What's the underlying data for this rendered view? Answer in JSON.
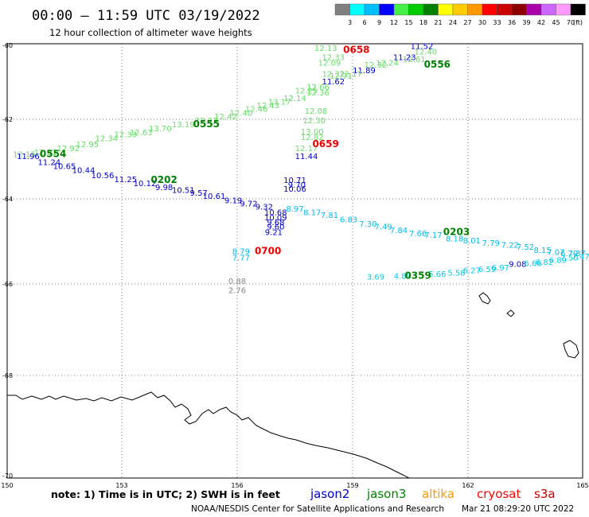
{
  "header": {
    "title": "00:00 — 11:59 UTC 03/19/2022",
    "subtitle": "12 hour collection of altimeter wave heights"
  },
  "legend": {
    "unit": "(ft)",
    "ticks": [
      "3",
      "6",
      "9",
      "12",
      "15",
      "18",
      "21",
      "24",
      "27",
      "30",
      "33",
      "36",
      "39",
      "42",
      "45",
      "70"
    ],
    "colors": [
      "#808080",
      "#00ffff",
      "#00bfff",
      "#0000ff",
      "#44ee44",
      "#00cc00",
      "#008000",
      "#ffff00",
      "#ffcc00",
      "#ff9900",
      "#ff0000",
      "#cc0000",
      "#8b0000",
      "#aa00aa",
      "#cc66ff",
      "#ff99ff",
      "#000000"
    ]
  },
  "map": {
    "lat_labels": [
      "-60",
      "-62",
      "-64",
      "-66",
      "-68",
      "-70"
    ],
    "lon_labels": [
      "150",
      "153",
      "156",
      "159",
      "162",
      "165"
    ]
  },
  "footer": {
    "note": "note:  1) Time is in UTC;  2) SWH is in feet",
    "satellites": [
      {
        "name": "jason2",
        "color": "#0000cc"
      },
      {
        "name": "jason3",
        "color": "#008000"
      },
      {
        "name": "altika",
        "color": "#ff9900"
      },
      {
        "name": "cryosat",
        "color": "#ff0000"
      },
      {
        "name": "s3a",
        "color": "#cc0000"
      }
    ],
    "credit": "NOAA/NESDIS Center for Satellite Applications and Research",
    "timestamp": "Mar 21 08:29:20 UTC 2022"
  },
  "time_labels": [
    {
      "text": "0658",
      "lon": 159.1,
      "lat": -60.2,
      "color": "#ee0000"
    },
    {
      "text": "0556",
      "lon": 161.2,
      "lat": -60.6,
      "color": "#008000"
    },
    {
      "text": "0555",
      "lon": 155.2,
      "lat": -62.2,
      "color": "#008000"
    },
    {
      "text": "0659",
      "lon": 158.3,
      "lat": -62.7,
      "color": "#ee0000"
    },
    {
      "text": "0554",
      "lon": 151.2,
      "lat": -62.95,
      "color": "#008000"
    },
    {
      "text": "0202",
      "lon": 154.1,
      "lat": -63.6,
      "color": "#008000"
    },
    {
      "text": "0203",
      "lon": 161.7,
      "lat": -64.85,
      "color": "#008000"
    },
    {
      "text": "0700",
      "lon": 156.8,
      "lat": -65.3,
      "color": "#ee0000"
    },
    {
      "text": "0359",
      "lon": 160.7,
      "lat": -65.88,
      "color": "#008000"
    }
  ],
  "swh_labels": [
    {
      "text": "12.13",
      "lon": 158.3,
      "lat": -60.15,
      "color": "#66dd66"
    },
    {
      "text": "11.52",
      "lon": 160.8,
      "lat": -60.1,
      "color": "#0000cc"
    },
    {
      "text": "12.40",
      "lon": 160.9,
      "lat": -60.25,
      "color": "#66dd66"
    },
    {
      "text": "12.61",
      "lon": 160.6,
      "lat": -60.45,
      "color": "#66dd66"
    },
    {
      "text": "11.23",
      "lon": 160.35,
      "lat": -60.4,
      "color": "#0000cc"
    },
    {
      "text": "12.24",
      "lon": 159.9,
      "lat": -60.55,
      "color": "#66dd66"
    },
    {
      "text": "12.32",
      "lon": 159.6,
      "lat": -60.6,
      "color": "#66dd66"
    },
    {
      "text": "11.89",
      "lon": 159.3,
      "lat": -60.75,
      "color": "#0000cc"
    },
    {
      "text": "12.33",
      "lon": 158.5,
      "lat": -60.4,
      "color": "#66dd66"
    },
    {
      "text": "12.09",
      "lon": 158.4,
      "lat": -60.55,
      "color": "#66dd66"
    },
    {
      "text": "12.71",
      "lon": 158.7,
      "lat": -60.9,
      "color": "#66dd66"
    },
    {
      "text": "12.17",
      "lon": 158.95,
      "lat": -60.85,
      "color": "#66dd66"
    },
    {
      "text": "12.32",
      "lon": 158.5,
      "lat": -60.85,
      "color": "#66dd66"
    },
    {
      "text": "11.62",
      "lon": 158.5,
      "lat": -61.05,
      "color": "#0000cc"
    },
    {
      "text": "12.66",
      "lon": 158.1,
      "lat": -61.2,
      "color": "#66dd66"
    },
    {
      "text": "12.25",
      "lon": 157.8,
      "lat": -61.3,
      "color": "#66dd66"
    },
    {
      "text": "12.36",
      "lon": 158.1,
      "lat": -61.35,
      "color": "#66dd66"
    },
    {
      "text": "12.14",
      "lon": 157.5,
      "lat": -61.5,
      "color": "#66dd66"
    },
    {
      "text": "13.17",
      "lon": 157.1,
      "lat": -61.6,
      "color": "#66dd66"
    },
    {
      "text": "12.43",
      "lon": 156.8,
      "lat": -61.7,
      "color": "#66dd66"
    },
    {
      "text": "12.46",
      "lon": 156.5,
      "lat": -61.8,
      "color": "#66dd66"
    },
    {
      "text": "12.40",
      "lon": 156.1,
      "lat": -61.9,
      "color": "#66dd66"
    },
    {
      "text": "12.42",
      "lon": 155.7,
      "lat": -62.0,
      "color": "#66dd66"
    },
    {
      "text": "12.08",
      "lon": 158.05,
      "lat": -61.85,
      "color": "#66dd66"
    },
    {
      "text": "12.30",
      "lon": 158.0,
      "lat": -62.1,
      "color": "#66dd66"
    },
    {
      "text": "13.00",
      "lon": 157.95,
      "lat": -62.38,
      "color": "#66dd66"
    },
    {
      "text": "12.82",
      "lon": 157.95,
      "lat": -62.52,
      "color": "#66dd66"
    },
    {
      "text": "12.17",
      "lon": 157.8,
      "lat": -62.8,
      "color": "#66dd66"
    },
    {
      "text": "11.44",
      "lon": 157.8,
      "lat": -63.0,
      "color": "#0000cc"
    },
    {
      "text": "12.13",
      "lon": 155.2,
      "lat": -62.1,
      "color": "#66dd66"
    },
    {
      "text": "13.19",
      "lon": 154.6,
      "lat": -62.2,
      "color": "#66dd66"
    },
    {
      "text": "13.70",
      "lon": 154.0,
      "lat": -62.3,
      "color": "#66dd66"
    },
    {
      "text": "12.63",
      "lon": 153.5,
      "lat": -62.4,
      "color": "#66dd66"
    },
    {
      "text": "12.33",
      "lon": 153.1,
      "lat": -62.45,
      "color": "#66dd66"
    },
    {
      "text": "12.34",
      "lon": 152.6,
      "lat": -62.55,
      "color": "#66dd66"
    },
    {
      "text": "12.95",
      "lon": 152.1,
      "lat": -62.7,
      "color": "#66dd66"
    },
    {
      "text": "12.92",
      "lon": 151.6,
      "lat": -62.8,
      "color": "#66dd66"
    },
    {
      "text": "12.91",
      "lon": 151.0,
      "lat": -62.9,
      "color": "#66dd66"
    },
    {
      "text": "12.15",
      "lon": 150.45,
      "lat": -62.95,
      "color": "#66dd66"
    },
    {
      "text": "11.96",
      "lon": 150.55,
      "lat": -63.0,
      "color": "#0000cc"
    },
    {
      "text": "11.24",
      "lon": 151.1,
      "lat": -63.15,
      "color": "#0000cc"
    },
    {
      "text": "10.65",
      "lon": 151.5,
      "lat": -63.25,
      "color": "#0000cc"
    },
    {
      "text": "10.44",
      "lon": 152.0,
      "lat": -63.35,
      "color": "#0000cc"
    },
    {
      "text": "10.56",
      "lon": 152.5,
      "lat": -63.48,
      "color": "#0000cc"
    },
    {
      "text": "11.25",
      "lon": 153.1,
      "lat": -63.58,
      "color": "#0000cc"
    },
    {
      "text": "10.12",
      "lon": 153.6,
      "lat": -63.68,
      "color": "#0000cc"
    },
    {
      "text": "9.98",
      "lon": 154.1,
      "lat": -63.78,
      "color": "#0000cc"
    },
    {
      "text": "10.51",
      "lon": 154.6,
      "lat": -63.85,
      "color": "#0000cc"
    },
    {
      "text": "9.57",
      "lon": 155.0,
      "lat": -63.92,
      "color": "#0000cc"
    },
    {
      "text": "10.61",
      "lon": 155.4,
      "lat": -64.0,
      "color": "#0000cc"
    },
    {
      "text": "9.19",
      "lon": 155.9,
      "lat": -64.1,
      "color": "#0000cc"
    },
    {
      "text": "9.72",
      "lon": 156.3,
      "lat": -64.18,
      "color": "#0000cc"
    },
    {
      "text": "9.32",
      "lon": 156.7,
      "lat": -64.25,
      "color": "#0000cc"
    },
    {
      "text": "10.71",
      "lon": 157.5,
      "lat": -63.6,
      "color": "#0000cc"
    },
    {
      "text": "9.70",
      "lon": 157.55,
      "lat": -63.72,
      "color": "#0000cc"
    },
    {
      "text": "10.06",
      "lon": 157.5,
      "lat": -63.82,
      "color": "#0000cc"
    },
    {
      "text": "10.68",
      "lon": 157.0,
      "lat": -64.38,
      "color": "#0000cc"
    },
    {
      "text": "10.09",
      "lon": 157.0,
      "lat": -64.5,
      "color": "#0000cc"
    },
    {
      "text": "9.68",
      "lon": 157.0,
      "lat": -64.62,
      "color": "#0000cc"
    },
    {
      "text": "9.60",
      "lon": 157.0,
      "lat": -64.72,
      "color": "#0000cc"
    },
    {
      "text": "9.21",
      "lon": 156.95,
      "lat": -64.85,
      "color": "#0000cc"
    },
    {
      "text": "8.97",
      "lon": 157.5,
      "lat": -64.3,
      "color": "#00bbee"
    },
    {
      "text": "8.17",
      "lon": 157.95,
      "lat": -64.38,
      "color": "#00bbee"
    },
    {
      "text": "7.81",
      "lon": 158.4,
      "lat": -64.45,
      "color": "#00bbee"
    },
    {
      "text": "6.83",
      "lon": 158.9,
      "lat": -64.55,
      "color": "#00bbee"
    },
    {
      "text": "7.30",
      "lon": 159.4,
      "lat": -64.65,
      "color": "#00bbee"
    },
    {
      "text": "7.49",
      "lon": 159.8,
      "lat": -64.72,
      "color": "#00bbee"
    },
    {
      "text": "7.84",
      "lon": 160.2,
      "lat": -64.8,
      "color": "#00bbee"
    },
    {
      "text": "7.66",
      "lon": 160.7,
      "lat": -64.88,
      "color": "#00bbee"
    },
    {
      "text": "7.17",
      "lon": 161.1,
      "lat": -64.92,
      "color": "#00bbee"
    },
    {
      "text": "8.18",
      "lon": 161.65,
      "lat": -65.0,
      "color": "#00bbee"
    },
    {
      "text": "8.01",
      "lon": 162.1,
      "lat": -65.05,
      "color": "#00bbee"
    },
    {
      "text": "7.79",
      "lon": 162.6,
      "lat": -65.1,
      "color": "#00bbee"
    },
    {
      "text": "7.22",
      "lon": 163.1,
      "lat": -65.15,
      "color": "#00bbee"
    },
    {
      "text": "7.52",
      "lon": 163.5,
      "lat": -65.2,
      "color": "#00bbee"
    },
    {
      "text": "8.15",
      "lon": 163.95,
      "lat": -65.27,
      "color": "#00bbee"
    },
    {
      "text": "7.07",
      "lon": 164.3,
      "lat": -65.32,
      "color": "#00bbee"
    },
    {
      "text": "6.79",
      "lon": 164.65,
      "lat": -65.35,
      "color": "#00bbee"
    },
    {
      "text": "7.37",
      "lon": 164.85,
      "lat": -65.35,
      "color": "#00bbee"
    },
    {
      "text": "8.79",
      "lon": 156.1,
      "lat": -65.3,
      "color": "#00bbee"
    },
    {
      "text": "7.77",
      "lon": 156.1,
      "lat": -65.45,
      "color": "#00bbee"
    },
    {
      "text": "0.88",
      "lon": 156.0,
      "lat": -66.0,
      "color": "#888888"
    },
    {
      "text": "2.76",
      "lon": 156.0,
      "lat": -66.2,
      "color": "#888888"
    },
    {
      "text": "3.69",
      "lon": 159.6,
      "lat": -65.9,
      "color": "#00ccee"
    },
    {
      "text": "4.89",
      "lon": 160.3,
      "lat": -65.88,
      "color": "#00ccee"
    },
    {
      "text": "5.66",
      "lon": 161.2,
      "lat": -65.83,
      "color": "#00ccee"
    },
    {
      "text": "5.58",
      "lon": 161.7,
      "lat": -65.8,
      "color": "#00ccee"
    },
    {
      "text": "6.27",
      "lon": 162.1,
      "lat": -65.75,
      "color": "#00ccee"
    },
    {
      "text": "6.59",
      "lon": 162.5,
      "lat": -65.72,
      "color": "#00ccee"
    },
    {
      "text": "6.97",
      "lon": 162.85,
      "lat": -65.68,
      "color": "#00ccee"
    },
    {
      "text": "9.08",
      "lon": 163.3,
      "lat": -65.6,
      "color": "#0000cc"
    },
    {
      "text": "6.66",
      "lon": 163.7,
      "lat": -65.58,
      "color": "#00ccee"
    },
    {
      "text": "6.82",
      "lon": 164.0,
      "lat": -65.55,
      "color": "#00ccee"
    },
    {
      "text": "6.89",
      "lon": 164.35,
      "lat": -65.5,
      "color": "#00ccee"
    },
    {
      "text": "7.50",
      "lon": 164.65,
      "lat": -65.45,
      "color": "#00ccee"
    },
    {
      "text": "7.47",
      "lon": 164.95,
      "lat": -65.42,
      "color": "#00ccee"
    }
  ]
}
